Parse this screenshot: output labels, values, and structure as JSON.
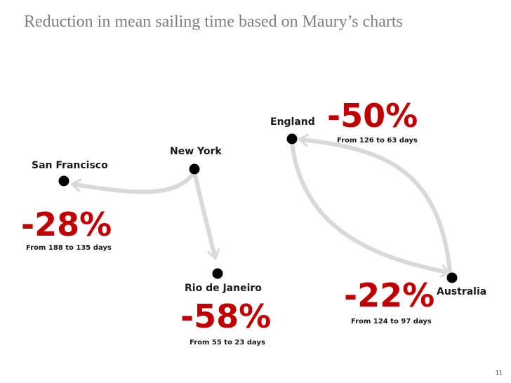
{
  "title": "Reduction in mean sailing time based on Maury’s charts",
  "page_number": "11",
  "colors": {
    "accent": "#c00000",
    "arrow": "#d9d9d9",
    "dot": "#000000",
    "title": "#808080"
  },
  "cities": {
    "new_york": "New York",
    "san_francisco": "San Francisco",
    "rio": "Rio de Janeiro",
    "england": "England",
    "australia": "Australia"
  },
  "routes": {
    "san_francisco": {
      "pct": "-28%",
      "detail": "From 188 to 135 days"
    },
    "rio": {
      "pct": "-58%",
      "detail": "From 55 to 23 days"
    },
    "england": {
      "pct": "-50%",
      "detail": "From 126 to 63 days"
    },
    "australia": {
      "pct": "-22%",
      "detail": "From 124 to 97 days"
    }
  }
}
